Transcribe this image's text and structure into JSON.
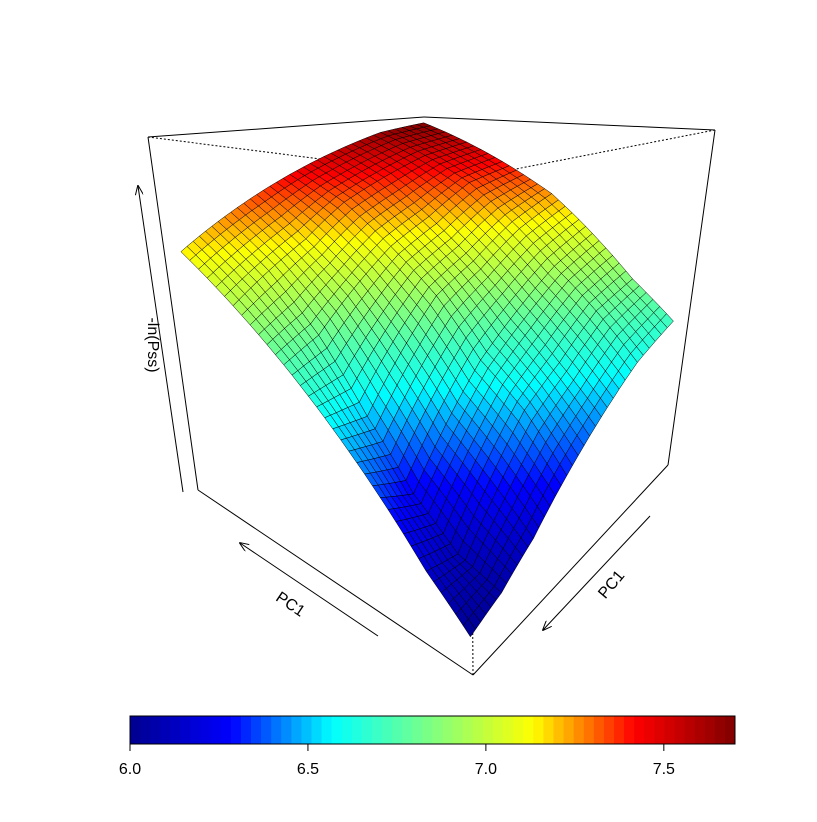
{
  "chart_data": {
    "type": "surface",
    "xlabel": "PC1",
    "ylabel": "PC1",
    "zlabel": "-ln(Pss)",
    "zlim": [
      5.9,
      7.75
    ],
    "z": [
      [
        6.0,
        6.05,
        6.15,
        6.3,
        6.45,
        6.6,
        6.7
      ],
      [
        6.15,
        6.1,
        6.3,
        6.5,
        6.62,
        6.78,
        6.85
      ],
      [
        6.35,
        6.25,
        6.45,
        6.65,
        6.8,
        6.95,
        7.05
      ],
      [
        6.55,
        6.5,
        6.7,
        6.9,
        7.0,
        7.15,
        7.25
      ],
      [
        6.75,
        6.8,
        6.95,
        7.1,
        7.2,
        7.35,
        7.4
      ],
      [
        6.95,
        7.05,
        7.15,
        7.3,
        7.4,
        7.5,
        7.55
      ],
      [
        7.15,
        7.25,
        7.35,
        7.45,
        7.55,
        7.65,
        7.7
      ]
    ],
    "colormap": [
      "#00008f",
      "#0000ff",
      "#00ffff",
      "#80ff80",
      "#ffff00",
      "#ff0000",
      "#800000"
    ],
    "clim": [
      6.0,
      7.7
    ],
    "cticks": [
      {
        "value": 6,
        "label": "6.0"
      },
      6.5,
      {
        "value": 7,
        "label": "7.0"
      },
      7.5
    ]
  }
}
